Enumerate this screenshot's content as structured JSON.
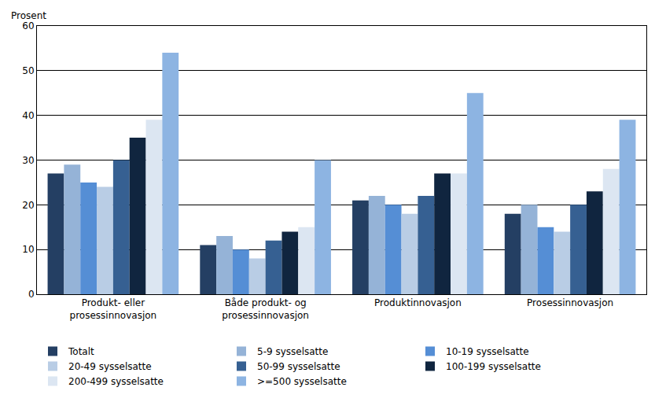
{
  "chart_data": {
    "type": "bar",
    "y_label": "Prosent",
    "categories": [
      "Produkt- eller prosessinnovasjon",
      "Både produkt- og prosessinnovasjon",
      "Produktinnovasjon",
      "Prosessinnovasjon"
    ],
    "series": [
      {
        "name": "Totalt",
        "color": "#243f63",
        "values": [
          27,
          11,
          21,
          18
        ]
      },
      {
        "name": "5-9 sysselsatte",
        "color": "#95b3d7",
        "values": [
          29,
          13,
          22,
          20
        ]
      },
      {
        "name": "10-19 sysselsatte",
        "color": "#558ed5",
        "values": [
          25,
          10,
          20,
          15
        ]
      },
      {
        "name": "20-49 sysselsatte",
        "color": "#b9cde5",
        "values": [
          24,
          8,
          18,
          14
        ]
      },
      {
        "name": "50-99 sysselsatte",
        "color": "#366092",
        "values": [
          30,
          12,
          22,
          20
        ]
      },
      {
        "name": "100-199 sysselsatte",
        "color": "#10253f",
        "values": [
          35,
          14,
          27,
          23
        ]
      },
      {
        "name": "200-499 sysselsatte",
        "color": "#dce6f2",
        "values": [
          39,
          15,
          27,
          28
        ]
      },
      {
        "name": ">=500 sysselsatte",
        "color": "#8db4e2",
        "values": [
          54,
          30,
          45,
          39
        ]
      }
    ],
    "ylim": [
      0,
      60
    ],
    "yticks": [
      0,
      10,
      20,
      30,
      40,
      50,
      60
    ],
    "grid": true,
    "legend": "bottom"
  }
}
